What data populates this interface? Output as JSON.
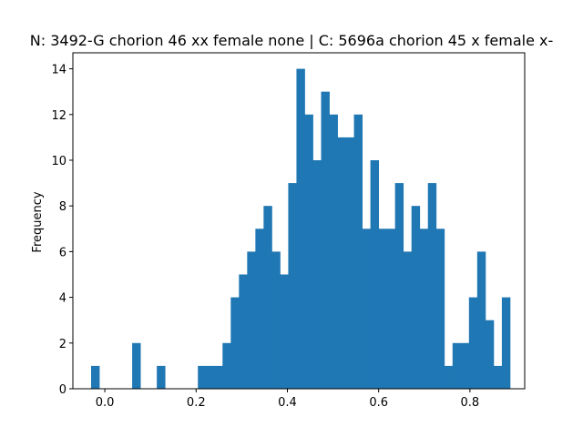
{
  "chart_data": {
    "type": "bar",
    "title": "N: 3492-G chorion 46 xx female none | C: 5696a chorion 45 x female x-",
    "xlabel": "",
    "ylabel": "Frequency",
    "xlim": [
      -0.07,
      0.92
    ],
    "ylim": [
      0,
      14.7
    ],
    "xticks": [
      0.0,
      0.2,
      0.4,
      0.6,
      0.8
    ],
    "xtick_labels": [
      "0.0",
      "0.2",
      "0.4",
      "0.6",
      "0.8"
    ],
    "yticks": [
      0,
      2,
      4,
      6,
      8,
      10,
      12,
      14
    ],
    "ytick_labels": [
      "0",
      "2",
      "4",
      "6",
      "8",
      "10",
      "12",
      "14"
    ],
    "grid": false,
    "color": "#1f77b4",
    "bin_start": -0.0301,
    "bin_width": 0.018,
    "counts": [
      1,
      0,
      0,
      0,
      0,
      2,
      0,
      0,
      1,
      0,
      0,
      0,
      0,
      1,
      1,
      1,
      2,
      4,
      5,
      6,
      7,
      8,
      6,
      5,
      9,
      14,
      12,
      10,
      13,
      12,
      11,
      11,
      12,
      7,
      10,
      7,
      7,
      9,
      6,
      8,
      7,
      9,
      7,
      1,
      2,
      2,
      4,
      6,
      3,
      1,
      4
    ]
  }
}
